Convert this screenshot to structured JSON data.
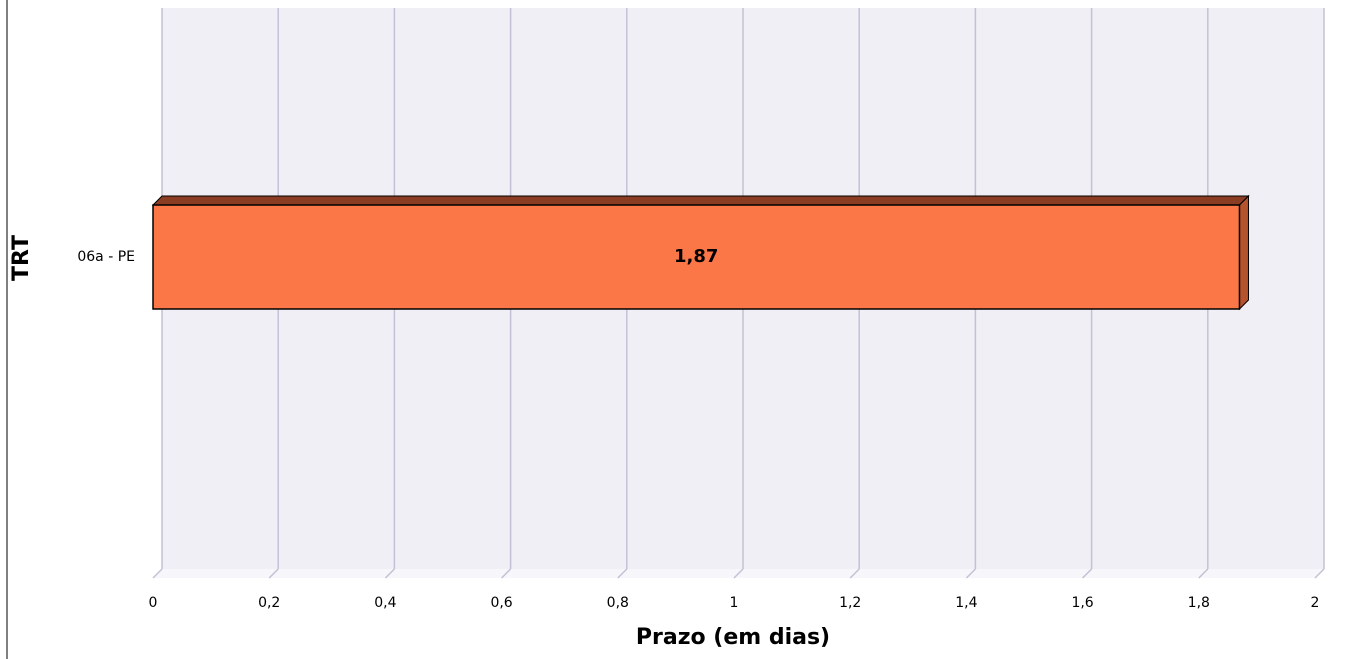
{
  "chart_data": {
    "type": "bar",
    "orientation": "horizontal",
    "categories": [
      "06a - PE"
    ],
    "values": [
      1.87
    ],
    "value_labels": [
      "1,87"
    ],
    "color": "#fb7748",
    "xlabel": "Prazo (em dias)",
    "ylabel": "TRT",
    "xlim": [
      0,
      2
    ],
    "xticks": [
      0,
      {
        "value": 0.2,
        "label": "0,2"
      },
      {
        "value": 0.4,
        "label": "0,4"
      },
      {
        "value": 0.6,
        "label": "0,6"
      },
      {
        "value": 0.8,
        "label": "0,8"
      },
      1,
      {
        "value": 1.2,
        "label": "1,2"
      },
      {
        "value": 1.4,
        "label": "1,4"
      },
      {
        "value": 1.6,
        "label": "1,6"
      },
      {
        "value": 1.8,
        "label": "1,8"
      },
      2
    ],
    "grid": true
  }
}
